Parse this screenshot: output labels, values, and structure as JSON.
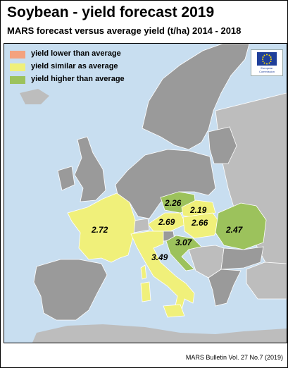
{
  "title": "Soybean - yield forecast 2019",
  "subtitle": "MARS forecast versus average yield (t/ha) 2014 - 2018",
  "legend": [
    {
      "label": "yield lower than average",
      "color": "#f4a27e"
    },
    {
      "label": "yield similar as average",
      "color": "#f0f07a"
    },
    {
      "label": "yield higher than average",
      "color": "#9cc25c"
    }
  ],
  "logo": {
    "text": "European Commission",
    "icon": "eu-flag-icon"
  },
  "colors": {
    "sea": "#c8def0",
    "land": "#9a9a9a",
    "nonEU": "#bdbdbd",
    "border": "#ffffff"
  },
  "regions": [
    {
      "name": "France",
      "value": "2.72",
      "category": "similar"
    },
    {
      "name": "Italy",
      "value": "3.49",
      "category": "similar"
    },
    {
      "name": "Austria",
      "value": "2.69",
      "category": "similar"
    },
    {
      "name": "Czechia",
      "value": "2.26",
      "category": "higher"
    },
    {
      "name": "Slovakia",
      "value": "2.19",
      "category": "similar"
    },
    {
      "name": "Hungary",
      "value": "2.66",
      "category": "similar"
    },
    {
      "name": "Croatia",
      "value": "3.07",
      "category": "higher"
    },
    {
      "name": "Romania",
      "value": "2.47",
      "category": "higher"
    }
  ],
  "source": "MARS Bulletin Vol. 27 No.7 (2019)"
}
